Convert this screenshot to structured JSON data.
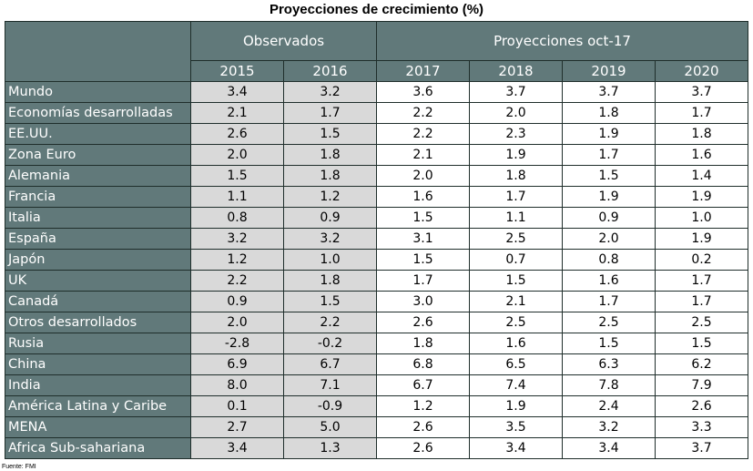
{
  "title": "Proyecciones de crecimiento (%)",
  "source": "Fuente: FMI",
  "chart_data": {
    "type": "table",
    "title": "Proyecciones de crecimiento (%)",
    "groups": [
      {
        "label": "Observados",
        "years": [
          "2015",
          "2016"
        ]
      },
      {
        "label": "Proyecciones oct-17",
        "years": [
          "2017",
          "2018",
          "2019",
          "2020"
        ]
      }
    ],
    "columns": [
      "2015",
      "2016",
      "2017",
      "2018",
      "2019",
      "2020"
    ],
    "rows": [
      {
        "label": "Mundo",
        "values": [
          "3.4",
          "3.2",
          "3.6",
          "3.7",
          "3.7",
          "3.7"
        ]
      },
      {
        "label": "Economías desarrolladas",
        "values": [
          "2.1",
          "1.7",
          "2.2",
          "2.0",
          "1.8",
          "1.7"
        ]
      },
      {
        "label": "EE.UU.",
        "values": [
          "2.6",
          "1.5",
          "2.2",
          "2.3",
          "1.9",
          "1.8"
        ]
      },
      {
        "label": "Zona Euro",
        "values": [
          "2.0",
          "1.8",
          "2.1",
          "1.9",
          "1.7",
          "1.6"
        ]
      },
      {
        "label": "Alemania",
        "values": [
          "1.5",
          "1.8",
          "2.0",
          "1.8",
          "1.5",
          "1.4"
        ]
      },
      {
        "label": "Francia",
        "values": [
          "1.1",
          "1.2",
          "1.6",
          "1.7",
          "1.9",
          "1.9"
        ]
      },
      {
        "label": "Italia",
        "values": [
          "0.8",
          "0.9",
          "1.5",
          "1.1",
          "0.9",
          "1.0"
        ]
      },
      {
        "label": "España",
        "values": [
          "3.2",
          "3.2",
          "3.1",
          "2.5",
          "2.0",
          "1.9"
        ]
      },
      {
        "label": "Japón",
        "values": [
          "1.2",
          "1.0",
          "1.5",
          "0.7",
          "0.8",
          "0.2"
        ]
      },
      {
        "label": "UK",
        "values": [
          "2.2",
          "1.8",
          "1.7",
          "1.5",
          "1.6",
          "1.7"
        ]
      },
      {
        "label": "Canadá",
        "values": [
          "0.9",
          "1.5",
          "3.0",
          "2.1",
          "1.7",
          "1.7"
        ]
      },
      {
        "label": "Otros desarrollados",
        "values": [
          "2.0",
          "2.2",
          "2.6",
          "2.5",
          "2.5",
          "2.5"
        ]
      },
      {
        "label": "Rusia",
        "values": [
          "-2.8",
          "-0.2",
          "1.8",
          "1.6",
          "1.5",
          "1.5"
        ]
      },
      {
        "label": "China",
        "values": [
          "6.9",
          "6.7",
          "6.8",
          "6.5",
          "6.3",
          "6.2"
        ]
      },
      {
        "label": "India",
        "values": [
          "8.0",
          "7.1",
          "6.7",
          "7.4",
          "7.8",
          "7.9"
        ]
      },
      {
        "label": "América Latina y Caribe",
        "values": [
          "0.1",
          "-0.9",
          "1.2",
          "1.9",
          "2.4",
          "2.6"
        ]
      },
      {
        "label": "MENA",
        "values": [
          "2.7",
          "5.0",
          "2.6",
          "3.5",
          "3.2",
          "3.3"
        ]
      },
      {
        "label": "Africa Sub-sahariana",
        "values": [
          "3.4",
          "1.3",
          "2.6",
          "3.4",
          "3.4",
          "3.7"
        ]
      }
    ]
  },
  "colors": {
    "header_bg": "#61797a",
    "header_text": "#ffffff",
    "observed_bg": "#d9d9d9",
    "projection_bg": "#ffffff",
    "border": "#1f2e2b"
  }
}
